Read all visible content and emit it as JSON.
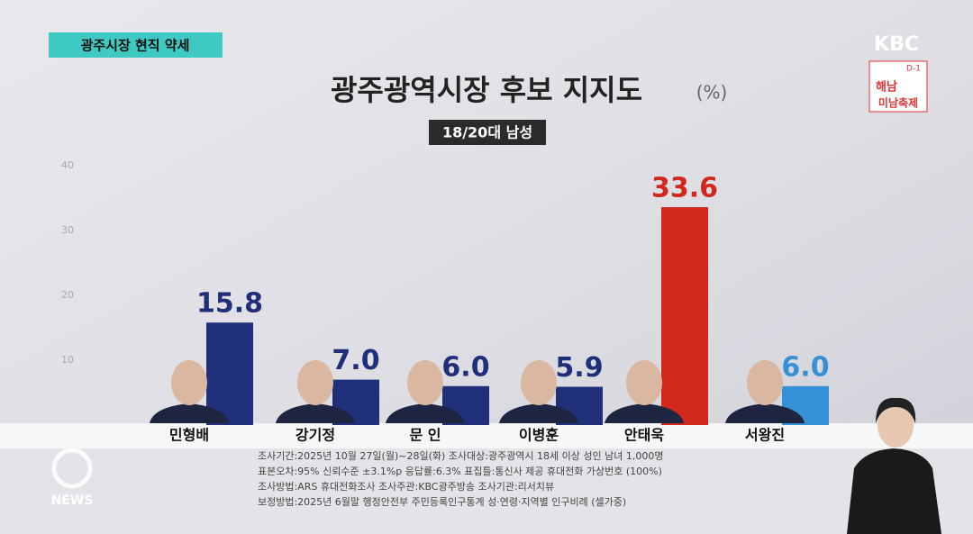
{
  "chart_data": {
    "type": "bar",
    "title": "광주광역시장 후보 지지도",
    "unit": "(%)",
    "subtitle": "18/20대 남성",
    "categories": [
      "민형배",
      "강기정",
      "문 인",
      "이병훈",
      "안태욱",
      "서왕진"
    ],
    "values": [
      15.8,
      7.0,
      6.0,
      5.9,
      33.6,
      6.0
    ],
    "value_labels": [
      "15.8",
      "7.0",
      "6.0",
      "5.9",
      "33.6",
      "6.0"
    ],
    "colors": [
      "#1f2f7a",
      "#1f2f7a",
      "#1f2f7a",
      "#1f2f7a",
      "#d1271d",
      "#3591d6"
    ],
    "ylim": [
      0,
      40
    ],
    "yticks": [
      10,
      20,
      30,
      40
    ],
    "grid": false
  },
  "overlay": {
    "tag": "광주시장 현직 약세",
    "logo": "KBC",
    "ad": [
      "D-1",
      "해남",
      "미남축제"
    ],
    "footnotes": [
      "조사기간:2025년 10월 27일(월)~28일(화)   조사대상:광주광역시 18세 이상 성인 남녀 1,000명",
      "표본오차:95% 신뢰수준 ±3.1%p   응답률:6.3%   표집틀:통신사 제공 휴대전화 가상번호 (100%)",
      "조사방법:ARS 휴대전화조사   조사주관:KBC광주방송   조사기관:리서치뷰",
      "보정방법:2025년 6월말 행정안전부 주민등록인구통계 성·연령·지역별 인구비례 (셀가중)"
    ],
    "watermark": "NEWS"
  }
}
